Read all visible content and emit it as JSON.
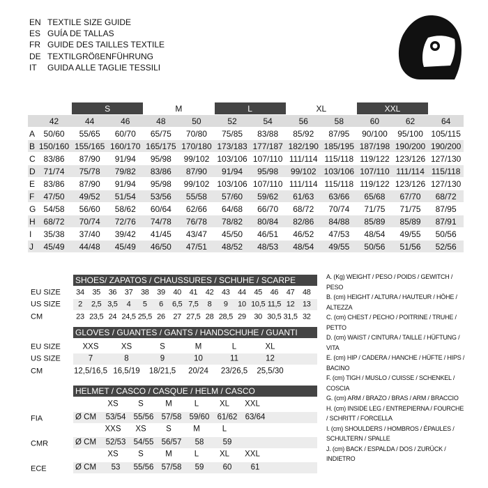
{
  "header": {
    "lines": [
      {
        "code": "EN",
        "text": "TEXTILE SIZE GUIDE"
      },
      {
        "code": "ES",
        "text": "GUÍA DE TALLAS"
      },
      {
        "code": "FR",
        "text": "GUIDE DES TAILLES TEXTILE"
      },
      {
        "code": "DE",
        "text": "TEXTILGRÖßENFÜHRUNG"
      },
      {
        "code": "IT",
        "text": "GUIDA ALLE TAGLIE TESSILI"
      }
    ]
  },
  "size_table": {
    "size_groups": [
      "S",
      "M",
      "L",
      "XL",
      "XXL"
    ],
    "columns": [
      "42",
      "44",
      "46",
      "48",
      "50",
      "52",
      "54",
      "56",
      "58",
      "60",
      "62",
      "64"
    ],
    "rows": [
      {
        "label": "A",
        "values": [
          "50/60",
          "55/65",
          "60/70",
          "65/75",
          "70/80",
          "75/85",
          "83/88",
          "85/92",
          "87/95",
          "90/100",
          "95/100",
          "105/115"
        ]
      },
      {
        "label": "B",
        "values": [
          "150/160",
          "155/165",
          "160/170",
          "165/175",
          "170/180",
          "173/183",
          "177/187",
          "182/190",
          "185/195",
          "187/198",
          "190/200",
          "190/200"
        ]
      },
      {
        "label": "C",
        "values": [
          "83/86",
          "87/90",
          "91/94",
          "95/98",
          "99/102",
          "103/106",
          "107/110",
          "111/114",
          "115/118",
          "119/122",
          "123/126",
          "127/130"
        ]
      },
      {
        "label": "D",
        "values": [
          "71/74",
          "75/78",
          "79/82",
          "83/86",
          "87/90",
          "91/94",
          "95/98",
          "99/102",
          "103/106",
          "107/110",
          "111/114",
          "115/118"
        ]
      },
      {
        "label": "E",
        "values": [
          "83/86",
          "87/90",
          "91/94",
          "95/98",
          "99/102",
          "103/106",
          "107/110",
          "111/114",
          "115/118",
          "119/122",
          "123/126",
          "127/130"
        ]
      },
      {
        "label": "F",
        "values": [
          "47/50",
          "49/52",
          "51/54",
          "53/56",
          "55/58",
          "57/60",
          "59/62",
          "61/63",
          "63/66",
          "65/68",
          "67/70",
          "68/72"
        ]
      },
      {
        "label": "G",
        "values": [
          "54/58",
          "56/60",
          "58/62",
          "60/64",
          "62/66",
          "64/68",
          "66/70",
          "68/72",
          "70/74",
          "71/75",
          "71/75",
          "87/95"
        ]
      },
      {
        "label": "H",
        "values": [
          "68/72",
          "70/74",
          "72/76",
          "74/78",
          "76/78",
          "78/82",
          "80/84",
          "82/86",
          "84/88",
          "85/89",
          "85/89",
          "87/91"
        ]
      },
      {
        "label": "I",
        "values": [
          "35/38",
          "37/40",
          "39/42",
          "41/45",
          "43/47",
          "45/50",
          "46/51",
          "46/52",
          "47/53",
          "48/54",
          "49/55",
          "50/56"
        ]
      },
      {
        "label": "J",
        "values": [
          "45/49",
          "44/48",
          "45/49",
          "46/50",
          "47/51",
          "48/52",
          "48/53",
          "48/54",
          "49/55",
          "50/56",
          "51/56",
          "52/56"
        ]
      }
    ]
  },
  "shoes": {
    "title": "SHOES/ ZAPATOS / CHAUSSURES / SCHUHE / SCARPE",
    "rows": [
      {
        "label": "EU SIZE",
        "values": [
          "34",
          "35",
          "36",
          "37",
          "38",
          "39",
          "40",
          "41",
          "42",
          "43",
          "44",
          "45",
          "46",
          "47",
          "48"
        ]
      },
      {
        "label": "US SIZE",
        "values": [
          "2",
          "2,5",
          "3,5",
          "4",
          "5",
          "6",
          "6,5",
          "7,5",
          "8",
          "9",
          "10",
          "10,5",
          "11,5",
          "12",
          "13"
        ]
      },
      {
        "label": "CM",
        "values": [
          "23",
          "23,5",
          "24",
          "24,5",
          "25,5",
          "26",
          "27",
          "27,5",
          "28",
          "28,5",
          "29",
          "30",
          "30,5",
          "31,5",
          "32"
        ]
      }
    ]
  },
  "gloves": {
    "title": "GLOVES / GUANTES / GANTS / HANDSCHUHE / GUANTI",
    "rows": [
      {
        "label": "EU SIZE",
        "values": [
          "XXS",
          "XS",
          "S",
          "M",
          "L",
          "XL"
        ]
      },
      {
        "label": "US SIZE",
        "values": [
          "7",
          "8",
          "9",
          "10",
          "11",
          "12"
        ]
      },
      {
        "label": "CM",
        "values": [
          "12,5/16,5",
          "16,5/19",
          "18/21,5",
          "20/24",
          "23/26,5",
          "25,5/30"
        ]
      }
    ]
  },
  "helmet": {
    "title": "HELMET / CASCO / CASQUE / HELM / CASCO",
    "standards": [
      {
        "label": "FIA",
        "sizes": [
          "XS",
          "S",
          "M",
          "L",
          "XL",
          "XXL"
        ],
        "unit": "Ø CM",
        "values": [
          "53/54",
          "55/56",
          "57/58",
          "59/60",
          "61/62",
          "63/64"
        ]
      },
      {
        "label": "CMR",
        "sizes": [
          "XXS",
          "XS",
          "S",
          "M",
          "L"
        ],
        "unit": "Ø CM",
        "values": [
          "52/53",
          "54/55",
          "56/57",
          "58",
          "59"
        ]
      },
      {
        "label": "ECE",
        "sizes": [
          "XS",
          "S",
          "M",
          "L",
          "XL",
          "XXL"
        ],
        "unit": "Ø CM",
        "values": [
          "53",
          "55/56",
          "57/58",
          "59",
          "60",
          "61"
        ]
      }
    ]
  },
  "legend": [
    "A. (Kg) WEIGHT / PESO / POIDS / GEWITCH / PESO",
    "B. (cm) HEIGHT / ALTURA / HAUTEUR / HÖHE / ALTEZZA",
    "C. (cm) CHEST / PECHO / POITRINE / TRUHE / PETTO",
    "D. (cm) WAIST / CINTURA / TAILLE / HÜFTUNG / VITA",
    "E. (cm) HIP / CADERA / HANCHE / HÜFTE / HIPS / BACINO",
    "F. (cm) TIGH / MUSLO / CUISSE / SCHENKEL / COSCIA",
    "G. (cm) ARM / BRAZO / BRAS / ARM / BRACCIO",
    "H. (cm) INSIDE LEG / ENTREPIERNA / FOURCHE / SCHRITT / FORCELLA",
    "I. (cm) SHOULDERS / HOMBROS / ÉPAULES / SCHULTERN / SPALLE",
    "J. (cm) BACK / ESPALDA / DOS / ZURÜCK / INDIETRO"
  ]
}
